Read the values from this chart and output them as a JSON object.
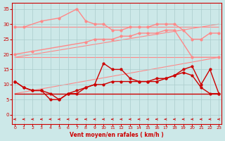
{
  "x": [
    0,
    1,
    2,
    3,
    4,
    5,
    6,
    7,
    8,
    9,
    10,
    11,
    12,
    13,
    14,
    15,
    16,
    17,
    18,
    19,
    20,
    21,
    22,
    23
  ],
  "bg_color": "#cce8e8",
  "grid_color": "#aacccc",
  "light_red": "#ff8888",
  "dark_red": "#cc0000",
  "xlabel": "Vent moyen/en rafales ( km/h )",
  "yticks": [
    0,
    5,
    10,
    15,
    20,
    25,
    30,
    35
  ],
  "ylim": [
    -3,
    37
  ],
  "xlim": [
    -0.3,
    23.3
  ],
  "diag_lines": [
    {
      "x": [
        0,
        23
      ],
      "y": [
        19,
        19
      ]
    },
    {
      "x": [
        0,
        23
      ],
      "y": [
        7,
        19
      ]
    },
    {
      "x": [
        0,
        23
      ],
      "y": [
        29,
        29
      ]
    },
    {
      "x": [
        0,
        23
      ],
      "y": [
        19,
        30
      ]
    }
  ],
  "rafales_line": {
    "x": [
      0,
      1,
      3,
      5,
      7,
      8,
      9,
      10,
      11,
      12,
      13,
      14,
      15,
      16,
      17,
      18,
      19,
      20,
      21,
      22,
      23
    ],
    "y": [
      29,
      29,
      31,
      32,
      35,
      31,
      30,
      30,
      28,
      28,
      29,
      29,
      29,
      30,
      30,
      30,
      28,
      25,
      25,
      27,
      27
    ]
  },
  "rafales_low_line": {
    "x": [
      0,
      2,
      8,
      9,
      10,
      11,
      12,
      13,
      14,
      15,
      16,
      17,
      18,
      20,
      23
    ],
    "y": [
      20,
      21,
      24,
      25,
      25,
      25,
      26,
      26,
      27,
      27,
      27,
      28,
      28,
      19,
      19
    ]
  },
  "moyen_line1": {
    "x": [
      0,
      1,
      2,
      3,
      4,
      5,
      6,
      7,
      8,
      9,
      10,
      11,
      12,
      13,
      14,
      15,
      16,
      17,
      18,
      19,
      20,
      21,
      22,
      23
    ],
    "y": [
      11,
      9,
      8,
      8,
      7,
      5,
      7,
      7,
      9,
      10,
      17,
      15,
      15,
      12,
      11,
      11,
      11,
      12,
      13,
      15,
      16,
      10,
      15,
      7
    ]
  },
  "moyen_line2": {
    "x": [
      0,
      1,
      2,
      3,
      4,
      5,
      6,
      7,
      8,
      9,
      10,
      11,
      12,
      13,
      14,
      15,
      16,
      17,
      18,
      19,
      20,
      21,
      22,
      23
    ],
    "y": [
      11,
      9,
      8,
      8,
      5,
      5,
      7,
      8,
      9,
      10,
      10,
      11,
      11,
      11,
      11,
      11,
      12,
      12,
      13,
      14,
      13,
      9,
      7,
      7
    ]
  },
  "flat_line": {
    "x": [
      0,
      23
    ],
    "y": [
      7,
      7
    ]
  }
}
